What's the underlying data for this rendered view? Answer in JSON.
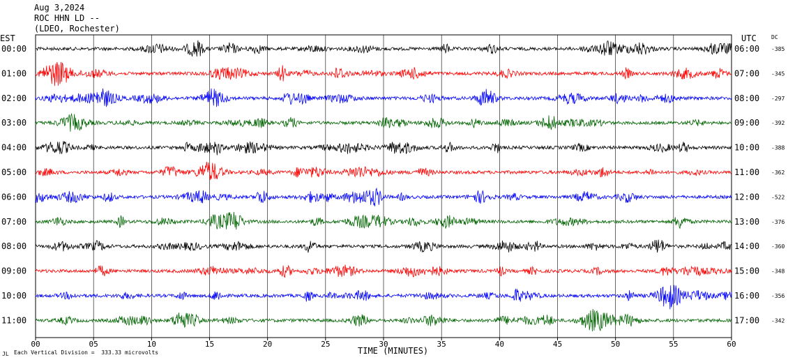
{
  "header": {
    "date": "Aug 3,2024",
    "station": "ROC HHN LD --",
    "network": "(LDEO, Rochester)"
  },
  "chart_data": {
    "type": "line",
    "title": "Aug 3,2024",
    "xlabel": "TIME (MINUTES)",
    "x_ticks": [
      "00",
      "05",
      "10",
      "15",
      "20",
      "25",
      "30",
      "35",
      "40",
      "45",
      "50",
      "55",
      "60"
    ],
    "xlim": [
      0,
      60
    ],
    "left_axis_title": "EST",
    "right_axis_title": "UTC",
    "dc_title": "DC",
    "grid": true,
    "trace_colors": [
      "#000000",
      "#ff0000",
      "#0000ff",
      "#006400"
    ],
    "rows": [
      {
        "est": "00:00",
        "utc": "06:00",
        "dc": "-385"
      },
      {
        "est": "01:00",
        "utc": "07:00",
        "dc": "-345"
      },
      {
        "est": "02:00",
        "utc": "08:00",
        "dc": "-297"
      },
      {
        "est": "03:00",
        "utc": "09:00",
        "dc": "-392"
      },
      {
        "est": "04:00",
        "utc": "10:00",
        "dc": "-388"
      },
      {
        "est": "05:00",
        "utc": "11:00",
        "dc": "-362"
      },
      {
        "est": "06:00",
        "utc": "12:00",
        "dc": "-522"
      },
      {
        "est": "07:00",
        "utc": "13:00",
        "dc": "-376"
      },
      {
        "est": "08:00",
        "utc": "14:00",
        "dc": "-360"
      },
      {
        "est": "09:00",
        "utc": "15:00",
        "dc": "-348"
      },
      {
        "est": "10:00",
        "utc": "16:00",
        "dc": "-356"
      },
      {
        "est": "11:00",
        "utc": "17:00",
        "dc": "-342"
      }
    ],
    "scale_note": "Each Vertical Division =  333.33 microvolts",
    "corner_mark": "JL"
  }
}
